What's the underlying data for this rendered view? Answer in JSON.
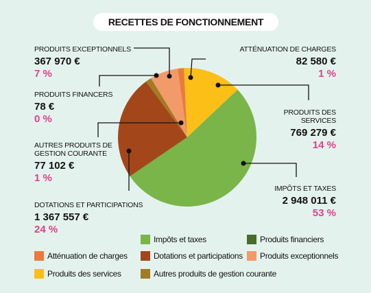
{
  "title": "RECETTES DE FONCTIONNEMENT",
  "chart_data": {
    "type": "pie",
    "categories": [
      "Atténuation de charges",
      "Produits des services",
      "Impôts et taxes",
      "Dotations et participations",
      "Autres produits de gestion courante",
      "Produits financiers",
      "Produits exceptionnels"
    ],
    "callout_labels": [
      "ATTÉNUATION DE CHARGES",
      "PRODUITS DES SERVICES",
      "IMPÔTS ET TAXES",
      "DOTATIONS ET PARTICIPATIONS",
      "AUTRES PRODUITS DE GESTION COURANTE",
      "PRODUITS FINANCERS",
      "PRODUITS EXCEPTIONNELS"
    ],
    "values": [
      82580,
      769279,
      2948011,
      1367557,
      77102,
      78,
      367970
    ],
    "value_labels": [
      "82 580 €",
      "769 279 €",
      "2 948 011 €",
      "1 367 557 €",
      "77 102 €",
      "78 €",
      "367 970 €"
    ],
    "shares": [
      1,
      14,
      53,
      24,
      1,
      0,
      7
    ],
    "share_labels": [
      "1 %",
      "14 %",
      "53 %",
      "24 %",
      "1 %",
      "0 %",
      "7 %"
    ],
    "colors": [
      "#ec7a3c",
      "#fbbf18",
      "#79b548",
      "#a3471b",
      "#a27b22",
      "#4b6b2b",
      "#f29a6a"
    ]
  }
}
